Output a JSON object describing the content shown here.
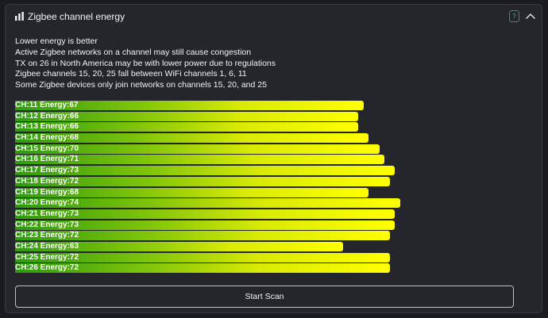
{
  "panel": {
    "title": "Zigbee channel energy",
    "help_label": "?",
    "title_icon": "bar-chart-icon",
    "collapse_icon": "chevron-up-icon"
  },
  "info_lines": [
    "Lower energy is better",
    "Active Zigbee networks on a channel may still cause congestion",
    "TX on 26 in North America may be with lower power due to regulations",
    "Zigbee channels 15, 20, 25 fall between WiFi channels 1, 6, 11",
    "Some Zigbee devices only join networks on channels 15, 20, and 25"
  ],
  "channels": [
    {
      "label": "CH:11 Energy:67",
      "energy": 67
    },
    {
      "label": "CH:12 Energy:66",
      "energy": 66
    },
    {
      "label": "CH:13 Energy:66",
      "energy": 66
    },
    {
      "label": "CH:14 Energy:68",
      "energy": 68
    },
    {
      "label": "CH:15 Energy:70",
      "energy": 70
    },
    {
      "label": "CH:16 Energy:71",
      "energy": 71
    },
    {
      "label": "CH:17 Energy:73",
      "energy": 73
    },
    {
      "label": "CH:18 Energy:72",
      "energy": 72
    },
    {
      "label": "CH:19 Energy:68",
      "energy": 68
    },
    {
      "label": "CH:20 Energy:74",
      "energy": 74
    },
    {
      "label": "CH:21 Energy:73",
      "energy": 73
    },
    {
      "label": "CH:22 Energy:73",
      "energy": 73
    },
    {
      "label": "CH:23 Energy:72",
      "energy": 72
    },
    {
      "label": "CH:24 Energy:63",
      "energy": 63
    },
    {
      "label": "CH:25 Energy:72",
      "energy": 72
    },
    {
      "label": "CH:26 Energy:72",
      "energy": 72
    }
  ],
  "scan_button": "Start Scan"
}
